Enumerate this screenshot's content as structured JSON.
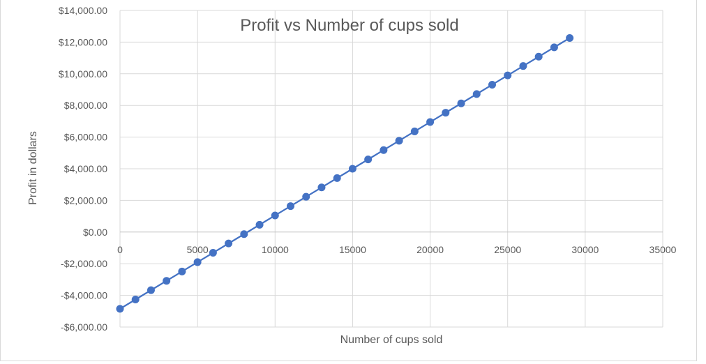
{
  "chart_data": {
    "type": "scatter",
    "title": "Profit vs Number of cups sold",
    "xlabel": "Number of cups sold",
    "ylabel": "Profit in dollars",
    "xlim": [
      0,
      35000
    ],
    "ylim": [
      -6000,
      14000
    ],
    "x_ticks": [
      0,
      5000,
      10000,
      15000,
      20000,
      25000,
      30000,
      35000
    ],
    "x_tick_labels": [
      "0",
      "5000",
      "10000",
      "15000",
      "20000",
      "25000",
      "30000",
      "35000"
    ],
    "y_ticks": [
      14000,
      12000,
      10000,
      8000,
      6000,
      4000,
      2000,
      0,
      -2000,
      -4000,
      -6000
    ],
    "y_tick_labels": [
      "$14,000.00",
      "$12,000.00",
      "$10,000.00",
      "$8,000.00",
      "$6,000.00",
      "$4,000.00",
      "$2,000.00",
      "$0.00",
      "-$2,000.00",
      "-$4,000.00",
      "-$6,000.00"
    ],
    "grid": true,
    "legend": "none",
    "colors": {
      "series": "#4472c4",
      "grid": "#d9d9d9",
      "axis": "#bfbfbf",
      "text": "#595959"
    },
    "series": [
      {
        "x": [
          0,
          1000,
          2000,
          3000,
          4000,
          5000,
          6000,
          7000,
          8000,
          9000,
          10000,
          11000,
          12000,
          13000,
          14000,
          15000,
          16000,
          17000,
          18000,
          19000,
          20000,
          21000,
          22000,
          23000,
          24000,
          25000,
          26000,
          27000,
          28000,
          29000
        ],
        "y": [
          -4850,
          -4260,
          -3670,
          -3080,
          -2490,
          -1900,
          -1310,
          -720,
          -130,
          460,
          1050,
          1640,
          2230,
          2820,
          3410,
          4000,
          4590,
          5180,
          5770,
          6360,
          6950,
          7540,
          8130,
          8720,
          9310,
          9900,
          10490,
          11080,
          11670,
          12260
        ]
      }
    ]
  }
}
